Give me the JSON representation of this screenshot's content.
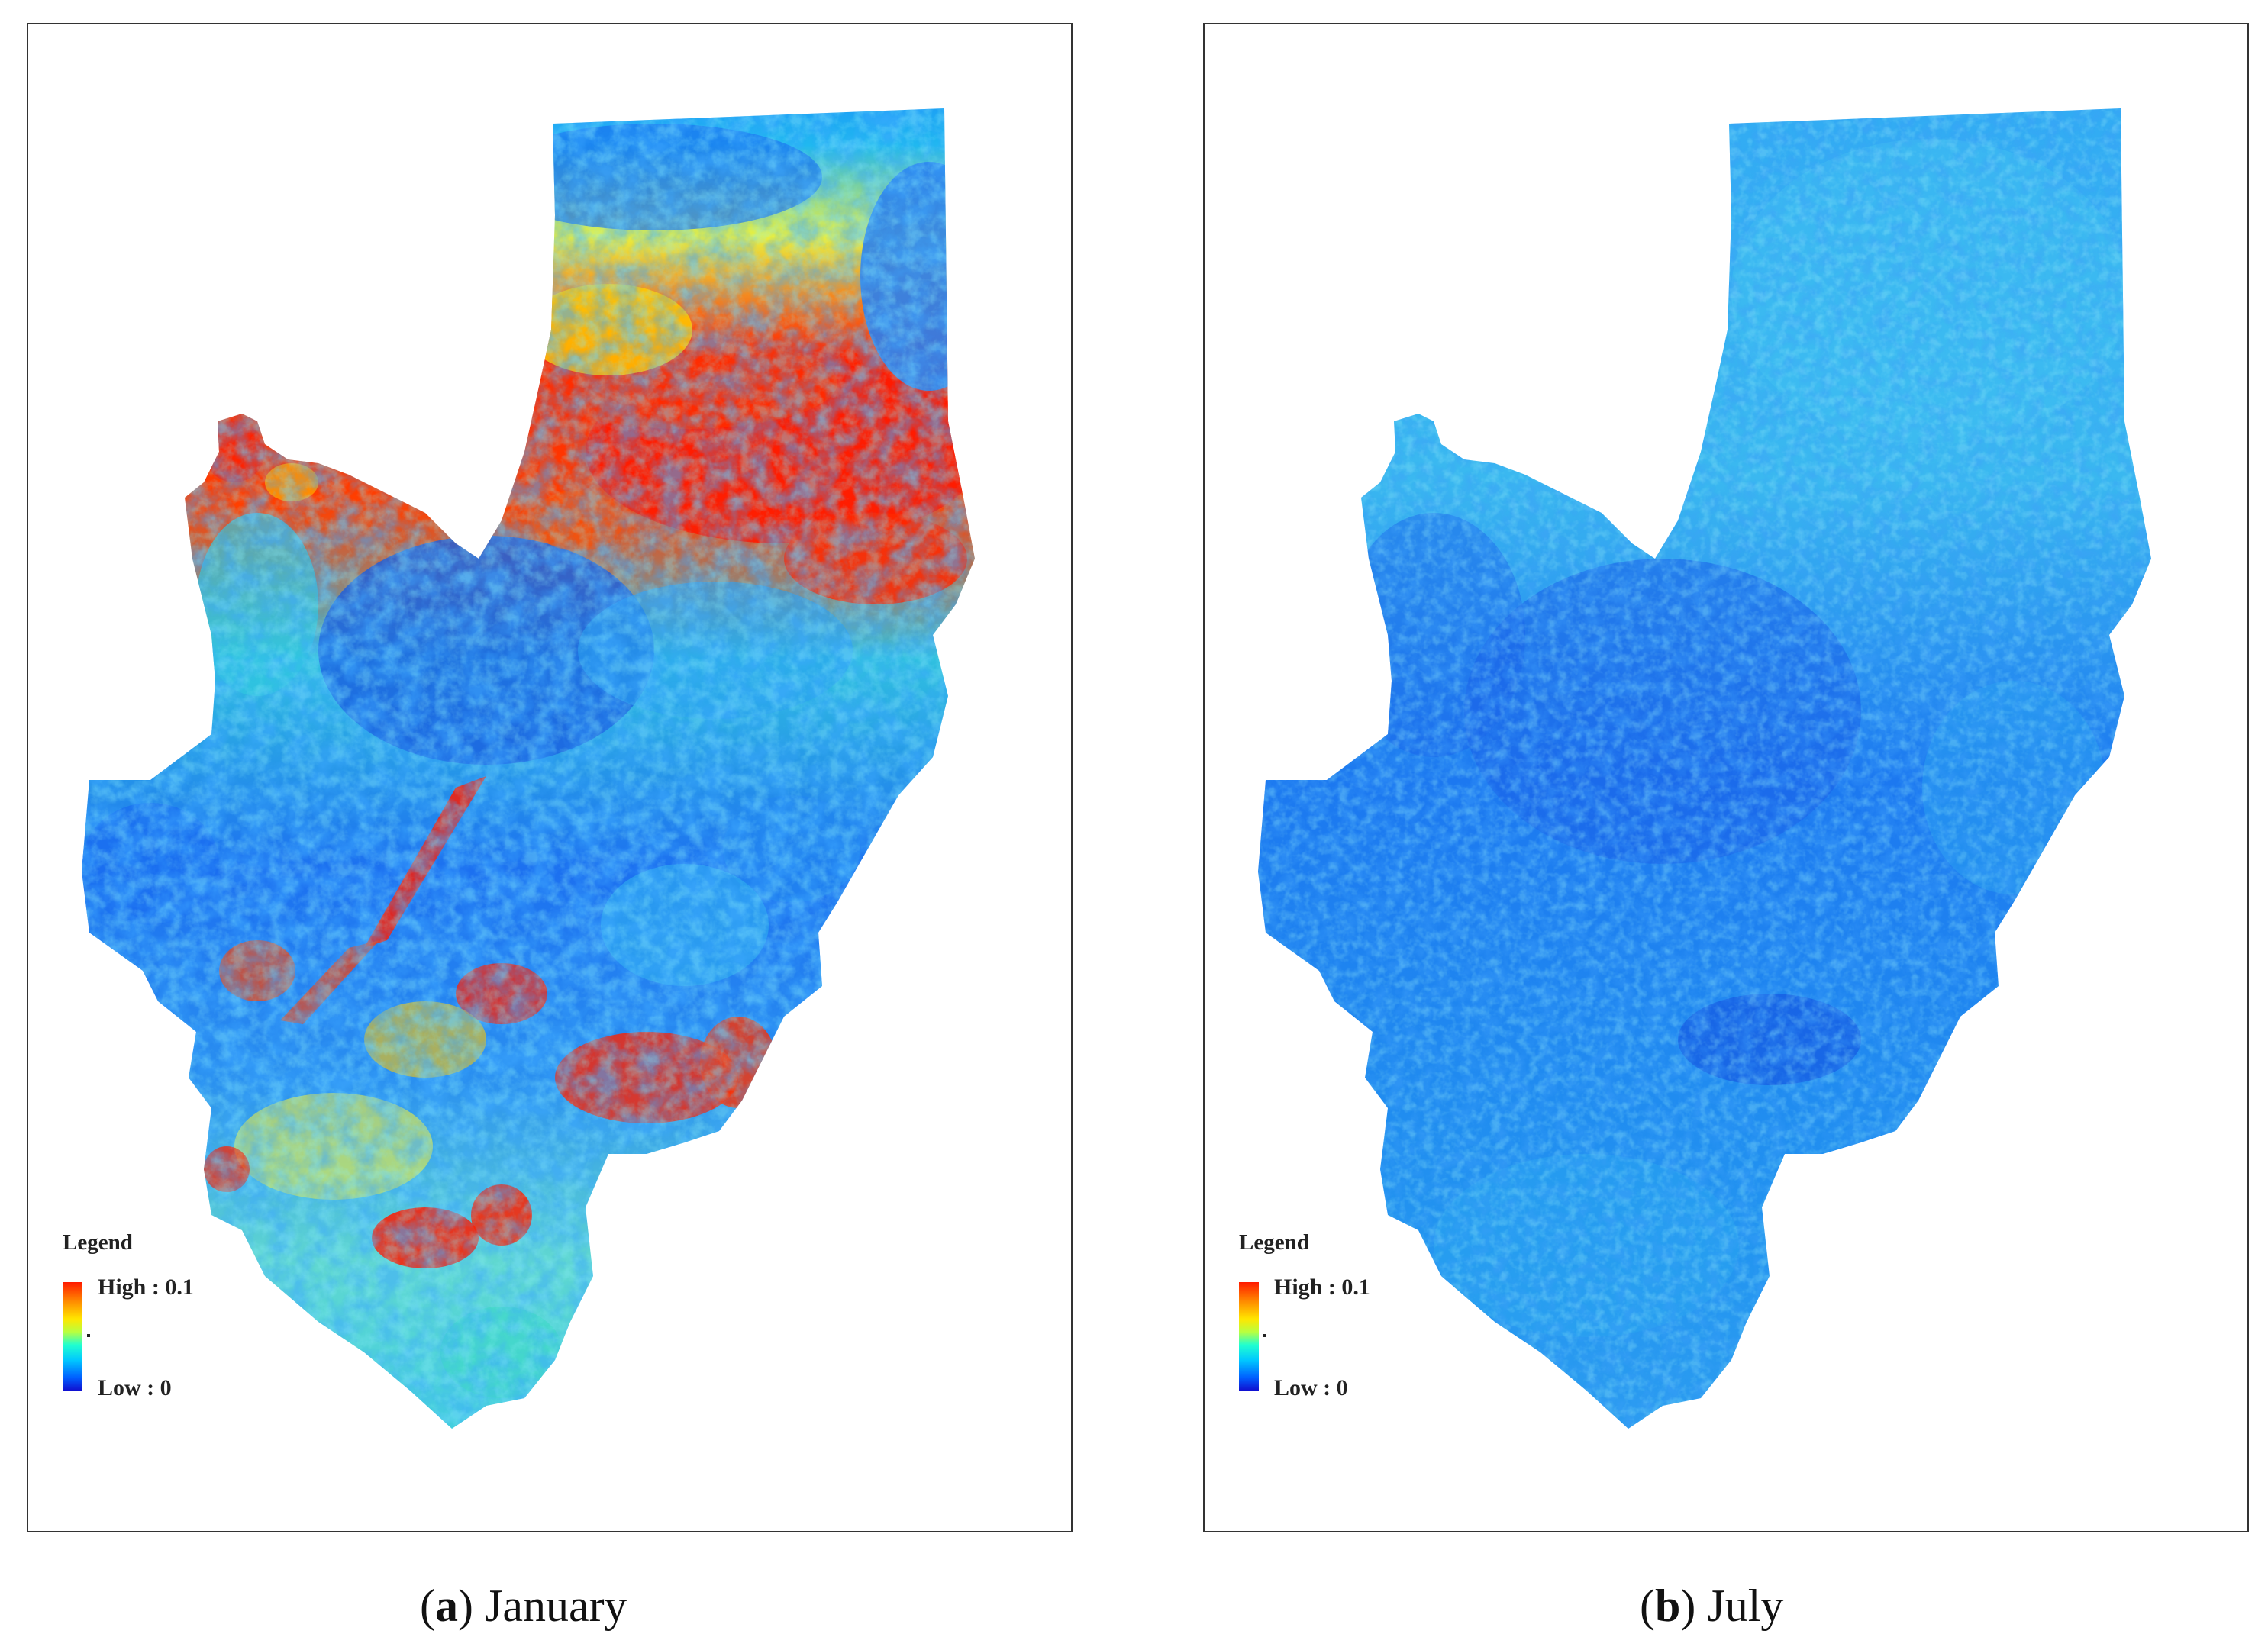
{
  "figure": {
    "panels": [
      {
        "id": "a",
        "caption_letter": "a",
        "caption_text": "January",
        "legend": {
          "title": "Legend",
          "high_label": "High : 0.1",
          "low_label": "Low : 0"
        },
        "dominant_colors": [
          "#ff1a00",
          "#ffe600",
          "#20e0e0",
          "#00a8ff",
          "#1060ff",
          "#1010d0"
        ]
      },
      {
        "id": "b",
        "caption_letter": "b",
        "caption_text": "July",
        "legend": {
          "title": "Legend",
          "high_label": "High : 0.1",
          "low_label": "Low : 0"
        },
        "dominant_colors": [
          "#1a8cff",
          "#2aa8ff",
          "#40c8f0",
          "#1060ff"
        ]
      }
    ]
  }
}
